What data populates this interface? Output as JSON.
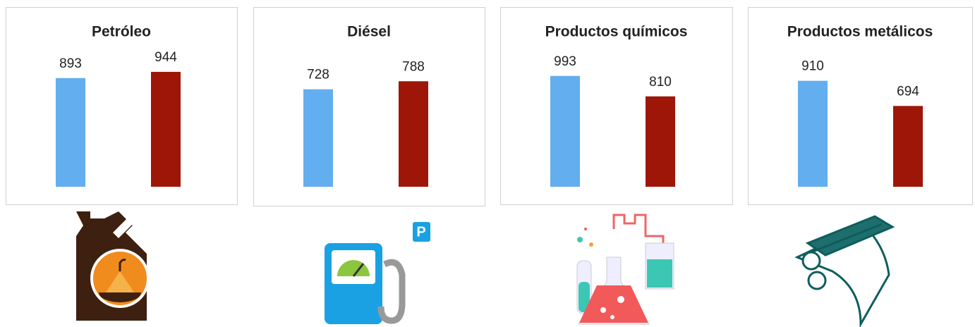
{
  "chart_data": [
    {
      "type": "bar",
      "title": "Petróleo",
      "categories": [
        null,
        null
      ],
      "values": [
        893,
        944
      ],
      "colors": [
        "#63aeee",
        "#9e1608"
      ],
      "ylim": [
        0,
        1100
      ]
    },
    {
      "type": "bar",
      "title": "Diésel",
      "categories": [
        null,
        null
      ],
      "values": [
        728,
        788
      ],
      "colors": [
        "#63aeee",
        "#9e1608"
      ],
      "ylim": [
        0,
        1000
      ]
    },
    {
      "type": "bar",
      "title": "Productos químicos",
      "categories": [
        null,
        null
      ],
      "values": [
        993,
        810
      ],
      "colors": [
        "#63aeee",
        "#9e1608"
      ],
      "ylim": [
        0,
        1200
      ]
    },
    {
      "type": "bar",
      "title": "Productos metálicos",
      "categories": [
        null,
        null
      ],
      "values": [
        910,
        694
      ],
      "colors": [
        "#63aeee",
        "#9e1608"
      ],
      "ylim": [
        0,
        1150
      ]
    }
  ]
}
